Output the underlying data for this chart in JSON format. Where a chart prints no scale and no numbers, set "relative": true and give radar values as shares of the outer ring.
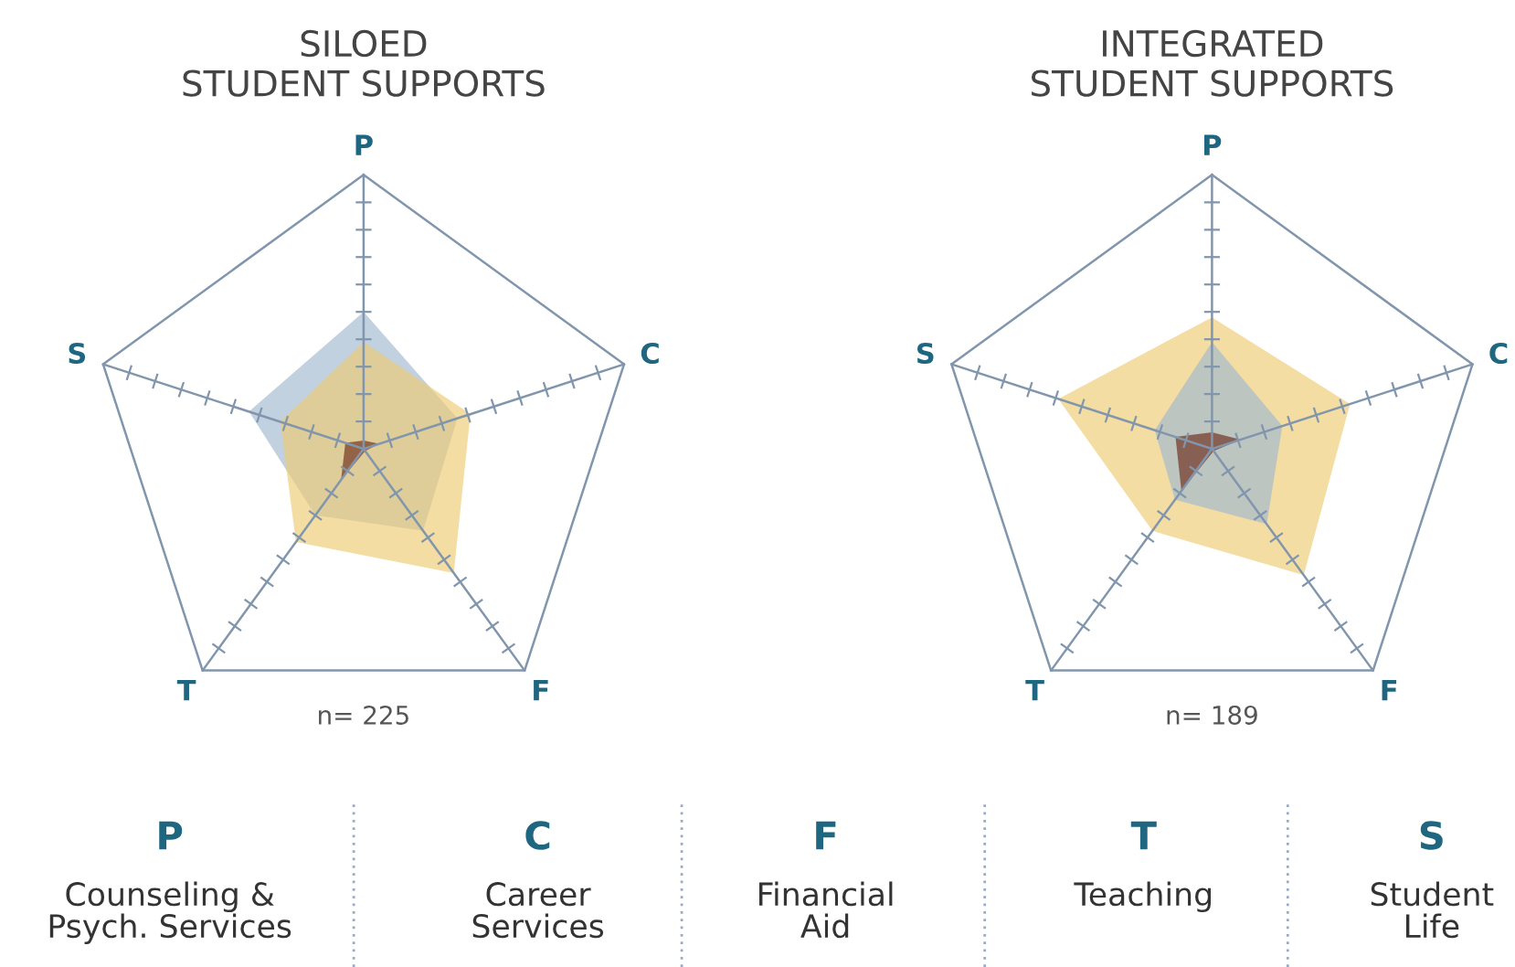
{
  "chart_data": [
    {
      "type": "radar",
      "title": "SILOED\nSTUDENT SUPPORTS",
      "categories": [
        "P",
        "C",
        "F",
        "T",
        "S"
      ],
      "relative": true,
      "annotations": [
        "n= 225"
      ],
      "series": [
        {
          "color": "#9fb8cf",
          "values": [
            0.5,
            0.36,
            0.37,
            0.3,
            0.44
          ]
        },
        {
          "color": "#eecb72",
          "values": [
            0.39,
            0.41,
            0.56,
            0.42,
            0.32
          ]
        },
        {
          "color": "#6b2a18",
          "values": [
            0.03,
            0.06,
            0.01,
            0.14,
            0.07
          ]
        }
      ]
    },
    {
      "type": "radar",
      "title": "INTEGRATED\nSTUDENT SUPPORTS",
      "categories": [
        "P",
        "C",
        "F",
        "T",
        "S"
      ],
      "relative": true,
      "annotations": [
        "n= 189"
      ],
      "series": [
        {
          "color": "#eecb72",
          "values": [
            0.48,
            0.53,
            0.57,
            0.37,
            0.59
          ]
        },
        {
          "color": "#9fb8cf",
          "values": [
            0.39,
            0.27,
            0.34,
            0.23,
            0.22
          ]
        },
        {
          "color": "#6b2a18",
          "values": [
            0.06,
            0.11,
            0.01,
            0.19,
            0.14
          ]
        }
      ]
    },
    {
      "type": "other",
      "annotations": [
        "P",
        "Counseling &\nPsych. Services",
        "C",
        "Career\nServices",
        "F",
        "Financial\nAid",
        "T",
        "Teaching",
        "S",
        "Student\nLife"
      ]
    }
  ]
}
